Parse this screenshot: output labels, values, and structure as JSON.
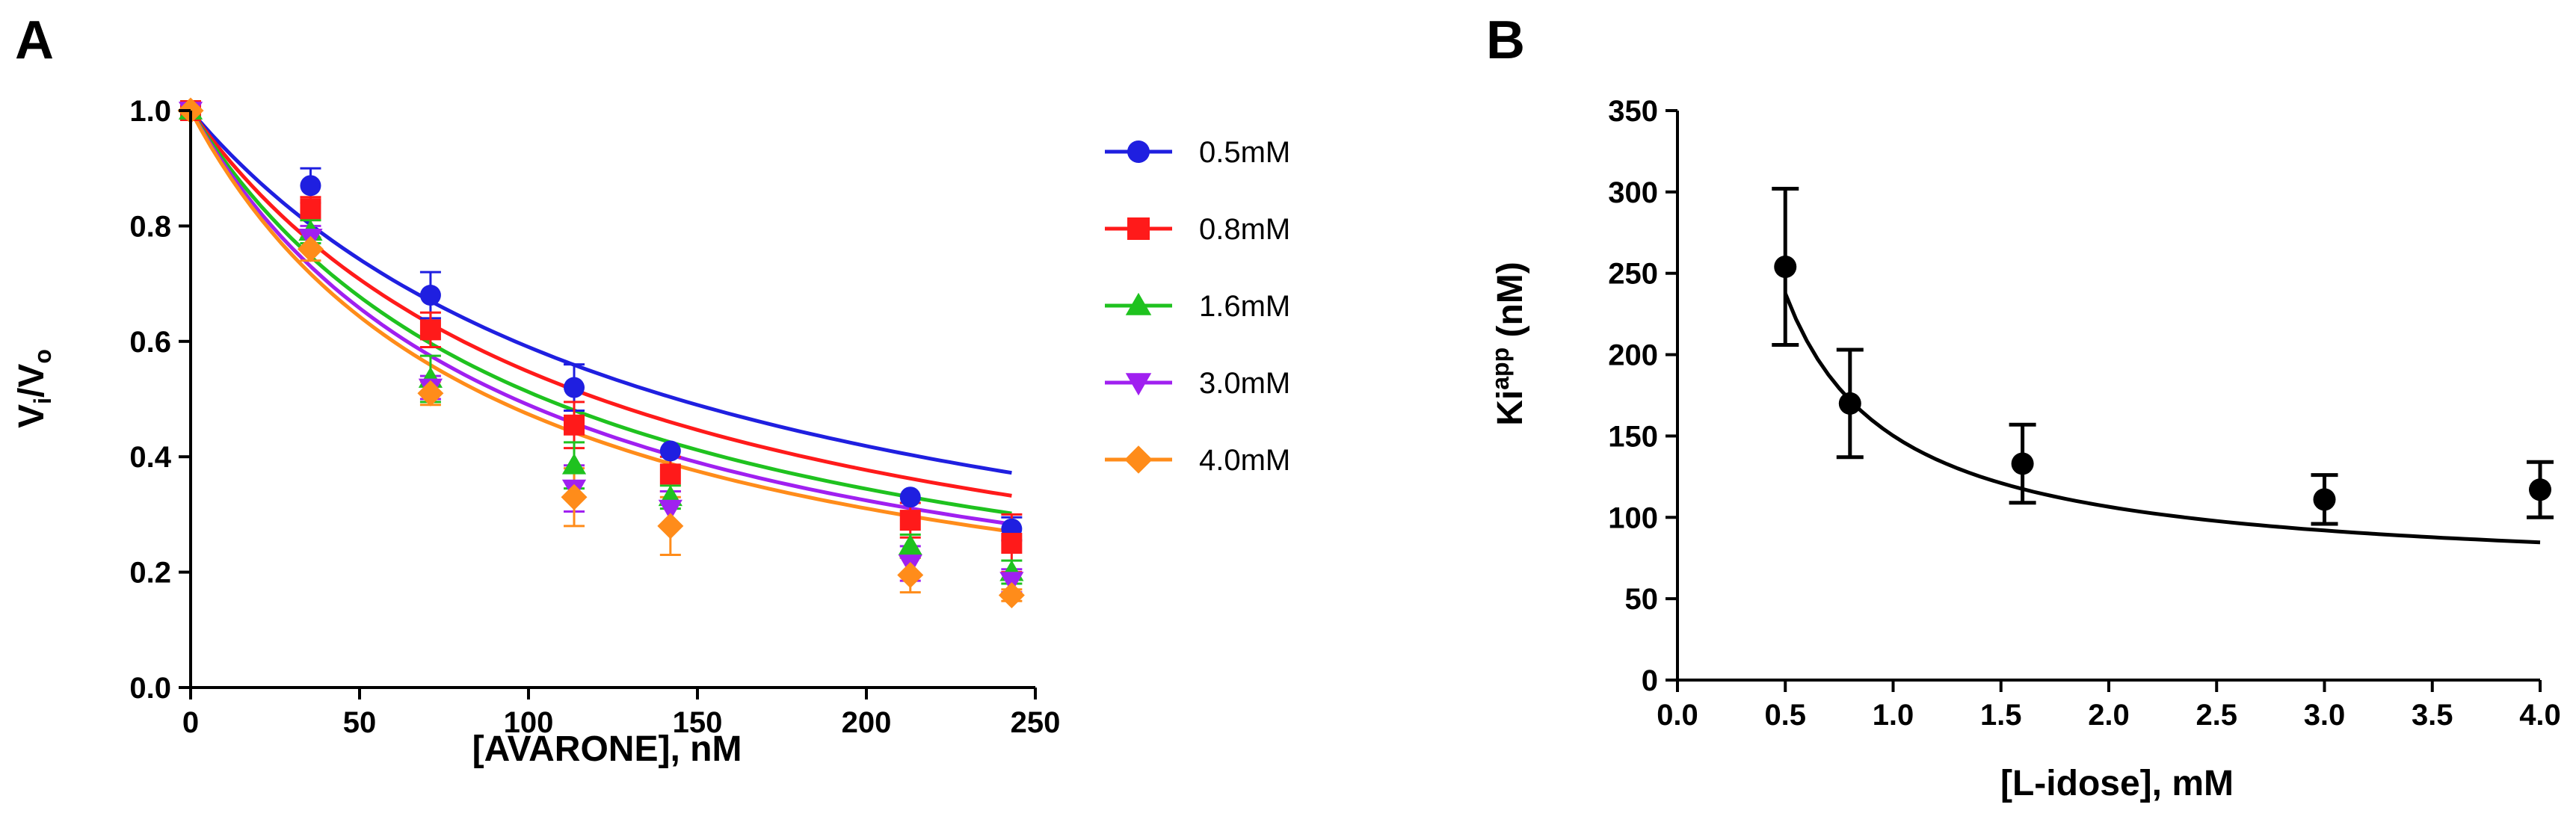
{
  "chart_data": [
    {
      "panel": "A",
      "type": "scatter",
      "title": "",
      "xlabel": "[AVARONE], nM",
      "ylabel_main": "V",
      "ylabel_sub1": "i",
      "ylabel_mid": "/V",
      "ylabel_sub2": "o",
      "xlim": [
        0,
        250
      ],
      "ylim": [
        0,
        1.0
      ],
      "xticks": [
        0,
        50,
        100,
        150,
        200,
        250
      ],
      "xtick_labels": [
        "0",
        "50",
        "100",
        "150",
        "200",
        "250"
      ],
      "yticks": [
        0,
        0.2,
        0.4,
        0.6,
        0.8,
        1.0
      ],
      "ytick_labels": [
        "0.0",
        "0.2",
        "0.4",
        "0.6",
        "0.8",
        "1.0"
      ],
      "grid": false,
      "legend_position": "right",
      "x": [
        0,
        35.5,
        71,
        113.5,
        142,
        213,
        243
      ],
      "series": [
        {
          "name": "0.5mM",
          "color": "#1f1fe0",
          "marker": "circle",
          "values": [
            1.0,
            0.87,
            0.68,
            0.52,
            0.41,
            0.33,
            0.275
          ],
          "errors": [
            0,
            0.03,
            0.04,
            0.04,
            0,
            0,
            0.02
          ],
          "fit_halfmax": 144
        },
        {
          "name": "0.8mM",
          "color": "#ff1a1a",
          "marker": "square",
          "values": [
            1.0,
            0.83,
            0.62,
            0.455,
            0.37,
            0.29,
            0.25
          ],
          "errors": [
            0,
            0.02,
            0.03,
            0.04,
            0.03,
            0.03,
            0.05
          ],
          "fit_halfmax": 121
        },
        {
          "name": "1.6mM",
          "color": "#1fc21f",
          "marker": "triangle-up",
          "values": [
            1.0,
            0.79,
            0.535,
            0.385,
            0.33,
            0.245,
            0.2
          ],
          "errors": [
            0,
            0.02,
            0.04,
            0.04,
            0.02,
            0.02,
            0.02
          ],
          "fit_halfmax": 105
        },
        {
          "name": "3.0mM",
          "color": "#a020f0",
          "marker": "triangle-down",
          "values": [
            1.0,
            0.78,
            0.52,
            0.345,
            0.31,
            0.215,
            0.185
          ],
          "errors": [
            0,
            0.02,
            0.02,
            0.04,
            0.03,
            0.03,
            0.02
          ],
          "fit_halfmax": 96
        },
        {
          "name": "4.0mM",
          "color": "#ff8c1a",
          "marker": "diamond",
          "values": [
            1.0,
            0.76,
            0.51,
            0.33,
            0.28,
            0.195,
            0.16
          ],
          "errors": [
            0,
            0.02,
            0.02,
            0.05,
            0.05,
            0.03,
            0.01
          ],
          "fit_halfmax": 90
        }
      ]
    },
    {
      "panel": "B",
      "type": "scatter",
      "title": "",
      "xlabel": "[L-idose], mM",
      "ylabel_main": "Ki",
      "ylabel_sup": "app",
      "ylabel_tail": " (nM)",
      "xlim": [
        0,
        4.0
      ],
      "ylim": [
        0,
        350
      ],
      "xticks": [
        0,
        0.5,
        1.0,
        1.5,
        2.0,
        2.5,
        3.0,
        3.5,
        4.0
      ],
      "xtick_labels": [
        "0.0",
        "0.5",
        "1.0",
        "1.5",
        "2.0",
        "2.5",
        "3.0",
        "3.5",
        "4.0"
      ],
      "yticks": [
        0,
        50,
        100,
        150,
        200,
        250,
        300,
        350
      ],
      "ytick_labels": [
        "0",
        "50",
        "100",
        "150",
        "200",
        "250",
        "300",
        "350"
      ],
      "grid": false,
      "series": [
        {
          "name": "Ki app",
          "color": "#000000",
          "marker": "circle",
          "x": [
            0.5,
            0.8,
            1.6,
            3.0,
            4.0
          ],
          "values": [
            254,
            170,
            133,
            111,
            117
          ],
          "errors": [
            48,
            33,
            24,
            15,
            17
          ],
          "fit": {
            "a": 62.8,
            "b": 87.4
          }
        }
      ]
    }
  ]
}
